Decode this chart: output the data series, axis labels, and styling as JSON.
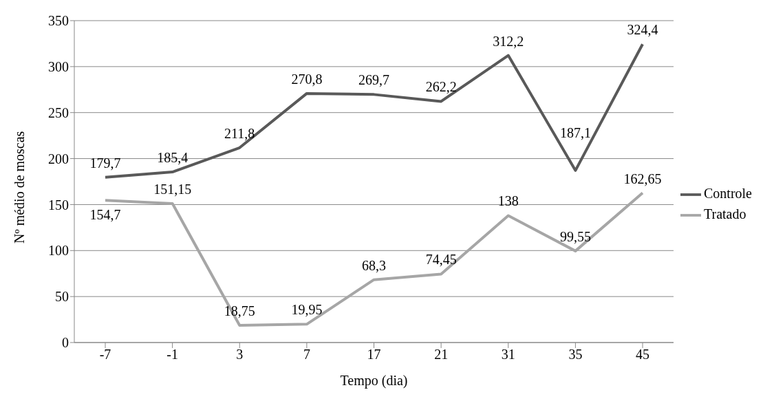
{
  "chart_data": {
    "type": "line",
    "xlabel": "Tempo (dia)",
    "ylabel": "Nº médio de moscas",
    "categories": [
      "-7",
      "-1",
      "3",
      "7",
      "17",
      "21",
      "31",
      "35",
      "45"
    ],
    "series": [
      {
        "name": "Controle",
        "color": "#595959",
        "values": [
          179.7,
          185.4,
          211.8,
          270.8,
          269.7,
          262.2,
          312.2,
          187.1,
          324.4
        ],
        "value_labels": [
          "179,7",
          "185,4",
          "211,8",
          "270,8",
          "269,7",
          "262,2",
          "312,2",
          "187,1",
          "324,4"
        ]
      },
      {
        "name": "Tratado",
        "color": "#a6a6a6",
        "values": [
          154.7,
          151.15,
          18.75,
          19.95,
          68.3,
          74.45,
          138,
          99.55,
          162.65
        ],
        "value_labels": [
          "154,7",
          "151,15",
          "18,75",
          "19,95",
          "68,3",
          "74,45",
          "138",
          "99,55",
          "162,65"
        ]
      }
    ],
    "ylim": [
      0,
      350
    ],
    "yticks": [
      0,
      50,
      100,
      150,
      200,
      250,
      300,
      350
    ],
    "grid": "y",
    "legend": "right",
    "marker": "none",
    "line_style": "solid"
  }
}
